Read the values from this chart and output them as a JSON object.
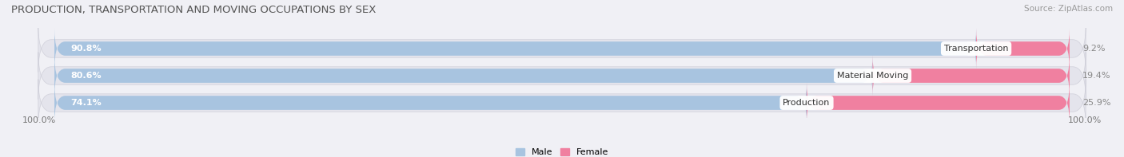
{
  "title": "PRODUCTION, TRANSPORTATION AND MOVING OCCUPATIONS BY SEX",
  "source": "Source: ZipAtlas.com",
  "categories": [
    "Transportation",
    "Material Moving",
    "Production"
  ],
  "male_values": [
    90.8,
    80.6,
    74.1
  ],
  "female_values": [
    9.2,
    19.4,
    25.9
  ],
  "male_color": "#a8c4e0",
  "female_color": "#f080a0",
  "bar_bg_color": "#e4e4ec",
  "title_fontsize": 9.5,
  "source_fontsize": 7.5,
  "tick_label_fontsize": 8,
  "bar_label_fontsize": 8,
  "cat_label_fontsize": 8,
  "legend_fontsize": 8,
  "xlim_left_label": "100.0%",
  "xlim_right_label": "100.0%",
  "background_color": "#f0f0f5"
}
